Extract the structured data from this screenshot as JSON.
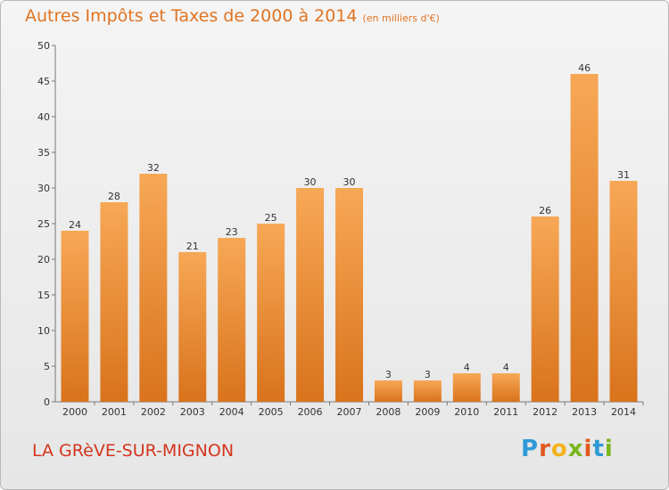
{
  "title": "Autres Impôts et Taxes de 2000 à 2014",
  "unit": "(en milliers d'€)",
  "commune": "LA GRèVE-SUR-MIGNON",
  "logo": {
    "letters": [
      "P",
      "r",
      "o",
      "x",
      "i",
      "t",
      "i"
    ],
    "colors": [
      "#2e9ad6",
      "#e05a1e",
      "#f2b31b",
      "#7ab51d",
      "#e05a1e",
      "#2e9ad6",
      "#7ab51d"
    ]
  },
  "colors": {
    "bar_light": "#f7a856",
    "bar_dark": "#d9731c",
    "title": "#e07422",
    "commune": "#d4351c"
  },
  "chart_data": {
    "type": "bar",
    "categories": [
      "2000",
      "2001",
      "2002",
      "2003",
      "2004",
      "2005",
      "2006",
      "2007",
      "2008",
      "2009",
      "2010",
      "2011",
      "2012",
      "2013",
      "2014"
    ],
    "values": [
      24,
      28,
      32,
      21,
      23,
      25,
      30,
      30,
      3,
      3,
      4,
      4,
      26,
      46,
      31
    ],
    "ylim": [
      0,
      50
    ],
    "yticks": [
      0,
      5,
      10,
      15,
      20,
      25,
      30,
      35,
      40,
      45,
      50
    ],
    "grid": false,
    "xlabel": "",
    "ylabel": ""
  }
}
